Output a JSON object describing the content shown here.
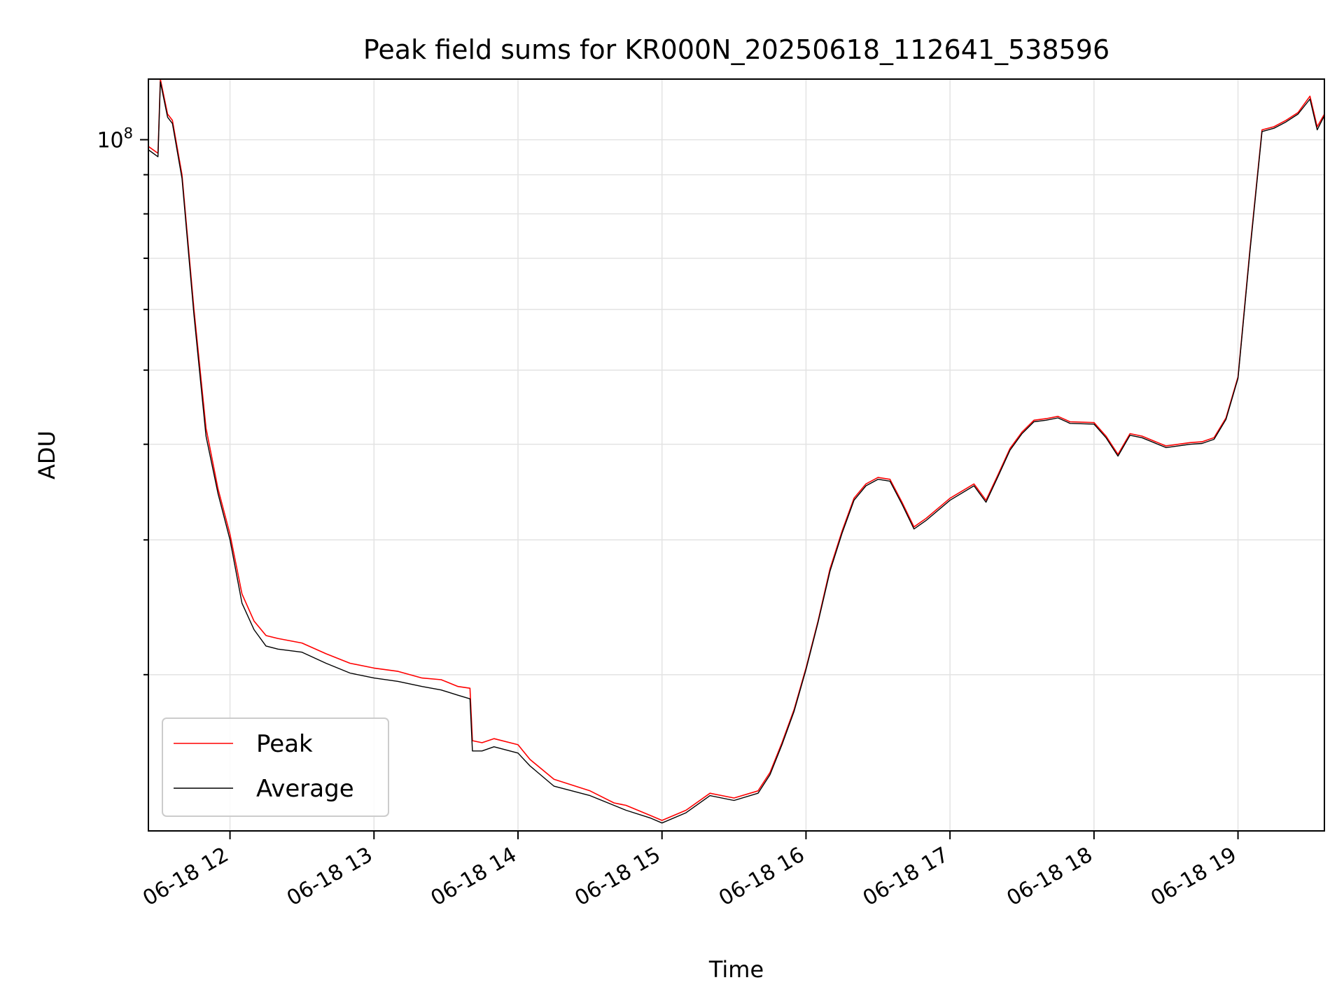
{
  "chart_data": {
    "type": "line",
    "title": "Peak field sums for KR000N_20250618_112641_538596",
    "xlabel": "Time",
    "ylabel": "ADU",
    "y_scale": "log",
    "y_major_tick_label": {
      "base": "10",
      "exponent": "8"
    },
    "y_major_tick_value": 100000000,
    "ylim": [
      12500000,
      120000000
    ],
    "xlim": [
      "06-18 11:26",
      "06-18 19:36"
    ],
    "x_tick_labels": [
      "06-18 12",
      "06-18 13",
      "06-18 14",
      "06-18 15",
      "06-18 16",
      "06-18 17",
      "06-18 18",
      "06-18 19"
    ],
    "x_tick_times": [
      "12:00",
      "13:00",
      "14:00",
      "15:00",
      "16:00",
      "17:00",
      "18:00",
      "19:00"
    ],
    "grid": true,
    "legend_position": "lower-left",
    "series": [
      {
        "name": "Peak",
        "color": "#ff0000",
        "x": [
          "11:26",
          "11:30",
          "11:31",
          "11:34",
          "11:36",
          "11:40",
          "11:45",
          "11:50",
          "11:55",
          "12:00",
          "12:05",
          "12:10",
          "12:15",
          "12:20",
          "12:30",
          "12:40",
          "12:50",
          "13:00",
          "13:10",
          "13:20",
          "13:28",
          "13:35",
          "13:40",
          "13:41",
          "13:45",
          "13:50",
          "14:00",
          "14:05",
          "14:15",
          "14:30",
          "14:40",
          "14:45",
          "14:55",
          "15:00",
          "15:10",
          "15:20",
          "15:30",
          "15:40",
          "15:45",
          "15:50",
          "15:55",
          "16:00",
          "16:05",
          "16:10",
          "16:15",
          "16:20",
          "16:25",
          "16:30",
          "16:35",
          "16:40",
          "16:45",
          "16:50",
          "17:00",
          "17:10",
          "17:15",
          "17:20",
          "17:25",
          "17:30",
          "17:35",
          "17:40",
          "17:45",
          "17:50",
          "18:00",
          "18:05",
          "18:10",
          "18:15",
          "18:20",
          "18:30",
          "18:40",
          "18:45",
          "18:50",
          "18:55",
          "19:00",
          "19:05",
          "19:10",
          "19:15",
          "19:20",
          "19:25",
          "19:30",
          "19:33",
          "19:36"
        ],
        "y": [
          98000000,
          96000000,
          120000000,
          108000000,
          106000000,
          90000000,
          60000000,
          42000000,
          35000000,
          30500000,
          25500000,
          23500000,
          22500000,
          22300000,
          22000000,
          21300000,
          20700000,
          20400000,
          20200000,
          19800000,
          19700000,
          19300000,
          19200000,
          16400000,
          16300000,
          16500000,
          16200000,
          15500000,
          14600000,
          14100000,
          13600000,
          13500000,
          13100000,
          12900000,
          13300000,
          14000000,
          13800000,
          14100000,
          14900000,
          16300000,
          18000000,
          20400000,
          23500000,
          27500000,
          30800000,
          34000000,
          35500000,
          36200000,
          36000000,
          33600000,
          31200000,
          32000000,
          34000000,
          35500000,
          33800000,
          36500000,
          39500000,
          41500000,
          43000000,
          43200000,
          43500000,
          42800000,
          42700000,
          41000000,
          38800000,
          41300000,
          41000000,
          39800000,
          40200000,
          40300000,
          40800000,
          43300000,
          49000000,
          72000000,
          103000000,
          104000000,
          106000000,
          108500000,
          114000000,
          104000000,
          108000000
        ]
      },
      {
        "name": "Average",
        "color": "#000000",
        "x": [
          "11:26",
          "11:30",
          "11:31",
          "11:34",
          "11:36",
          "11:40",
          "11:45",
          "11:50",
          "11:55",
          "12:00",
          "12:05",
          "12:10",
          "12:15",
          "12:20",
          "12:30",
          "12:40",
          "12:50",
          "13:00",
          "13:10",
          "13:20",
          "13:28",
          "13:35",
          "13:40",
          "13:41",
          "13:45",
          "13:50",
          "14:00",
          "14:05",
          "14:15",
          "14:30",
          "14:40",
          "14:45",
          "14:55",
          "15:00",
          "15:10",
          "15:20",
          "15:30",
          "15:40",
          "15:45",
          "15:50",
          "15:55",
          "16:00",
          "16:05",
          "16:10",
          "16:15",
          "16:20",
          "16:25",
          "16:30",
          "16:35",
          "16:40",
          "16:45",
          "16:50",
          "17:00",
          "17:10",
          "17:15",
          "17:20",
          "17:25",
          "17:30",
          "17:35",
          "17:40",
          "17:45",
          "17:50",
          "18:00",
          "18:05",
          "18:10",
          "18:15",
          "18:20",
          "18:30",
          "18:40",
          "18:45",
          "18:50",
          "18:55",
          "19:00",
          "19:05",
          "19:10",
          "19:15",
          "19:20",
          "19:25",
          "19:30",
          "19:33",
          "19:36"
        ],
        "y": [
          97000000,
          95000000,
          119000000,
          107000000,
          105000000,
          89000000,
          59000000,
          41000000,
          34500000,
          30000000,
          24800000,
          22900000,
          21800000,
          21600000,
          21400000,
          20700000,
          20100000,
          19800000,
          19600000,
          19300000,
          19100000,
          18800000,
          18600000,
          15900000,
          15900000,
          16100000,
          15800000,
          15200000,
          14300000,
          13900000,
          13500000,
          13300000,
          13000000,
          12800000,
          13200000,
          13900000,
          13700000,
          14000000,
          14800000,
          16200000,
          17900000,
          20300000,
          23400000,
          27300000,
          30600000,
          33800000,
          35300000,
          36000000,
          35800000,
          33400000,
          31000000,
          31800000,
          33800000,
          35300000,
          33600000,
          36300000,
          39300000,
          41300000,
          42800000,
          43000000,
          43300000,
          42600000,
          42500000,
          40800000,
          38600000,
          41100000,
          40800000,
          39600000,
          40000000,
          40100000,
          40600000,
          43100000,
          48800000,
          71500000,
          102500000,
          103500000,
          105500000,
          108000000,
          113000000,
          103000000,
          107500000
        ]
      }
    ]
  }
}
